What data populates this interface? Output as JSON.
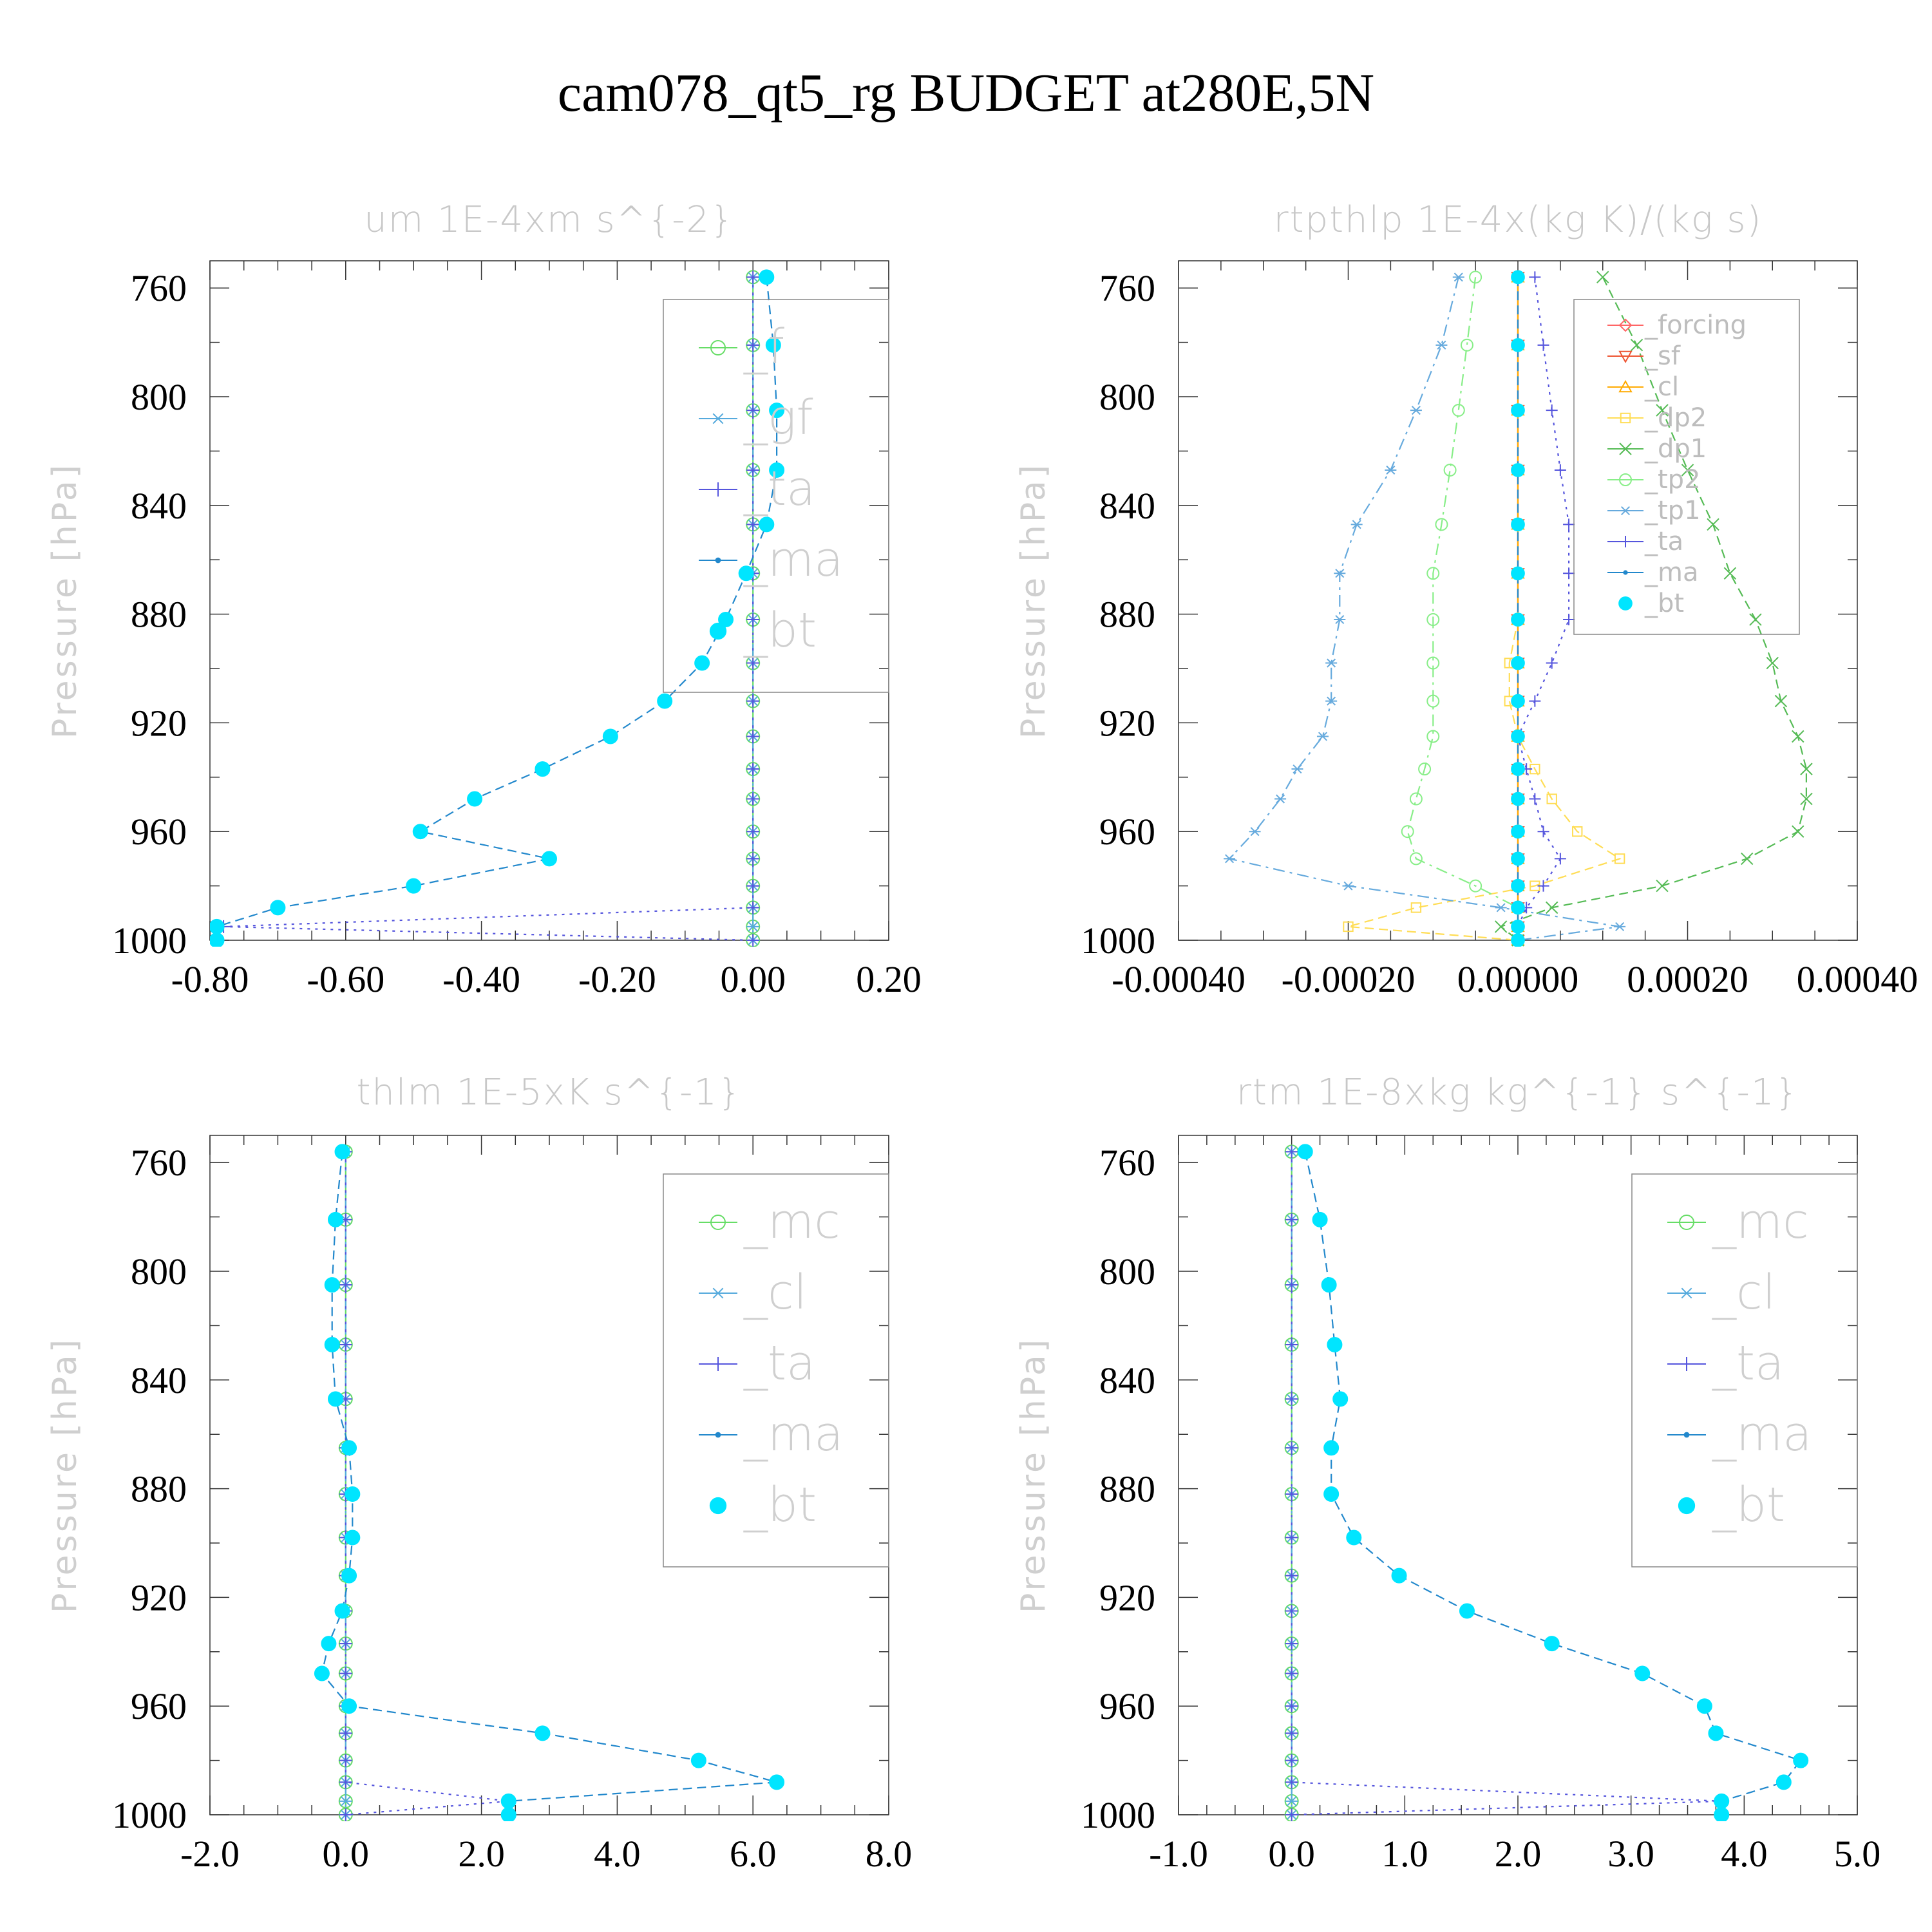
{
  "figure": {
    "title": "cam078_qt5_rg  BUDGET at280E,5N"
  },
  "chart_data": [
    {
      "type": "line",
      "title": "um  1E-4xm s^{-2}",
      "ylabel": "Pressure [hPa]",
      "ylim": [
        1000,
        750
      ],
      "y_ticks": [
        760,
        800,
        840,
        880,
        920,
        960,
        1000
      ],
      "y_tick_labels": [
        "760",
        "800",
        "840",
        "880",
        "920",
        "960",
        "1000"
      ],
      "xlim": [
        -0.8,
        0.2
      ],
      "x_ticks": [
        -0.8,
        -0.6,
        -0.4,
        -0.2,
        0.0,
        0.2
      ],
      "x_tick_labels": [
        "-0.80",
        "-0.60",
        "-0.40",
        "-0.20",
        "0.00",
        "0.20"
      ],
      "legend": {
        "position": "top-right",
        "size": "large"
      },
      "levels": [
        756,
        781,
        805,
        827,
        847,
        865,
        882,
        898,
        912,
        925,
        937,
        948,
        960,
        970,
        980,
        988,
        995,
        1000
      ],
      "series": [
        {
          "name": "_f",
          "color": "#66dd66",
          "marker": "circle-open",
          "dash": "solid",
          "values": [
            0,
            0,
            0,
            0,
            0,
            0,
            0,
            0,
            0,
            0,
            0,
            0,
            0,
            0,
            0,
            0,
            0,
            0
          ]
        },
        {
          "name": "_gf",
          "color": "#55aadd",
          "marker": "asterisk",
          "dash": "dashdot",
          "values": [
            0,
            0,
            0,
            0,
            0,
            0,
            0,
            0,
            0,
            0,
            0,
            0,
            0,
            0,
            0,
            0,
            0,
            0
          ]
        },
        {
          "name": "_ta",
          "color": "#5555dd",
          "marker": "plus",
          "dash": "dotted",
          "values": [
            0,
            0,
            0,
            0,
            0,
            0,
            0,
            0,
            0,
            0,
            0,
            0,
            0,
            0,
            0,
            0,
            -0.78,
            0
          ]
        },
        {
          "name": "_ma",
          "color": "#2288cc",
          "marker": "dot",
          "dash": "dashed",
          "values": [
            0.02,
            0.03,
            0.035,
            0.035,
            0.02,
            -0.01,
            -0.04,
            -0.075,
            -0.13,
            -0.21,
            -0.31,
            -0.41,
            -0.49,
            -0.3,
            -0.5,
            -0.7,
            -0.79,
            -0.79
          ]
        },
        {
          "name": "_bt",
          "color": "#00e5ff",
          "marker": "filled-circle",
          "dash": "none",
          "values": [
            0.02,
            0.03,
            0.035,
            0.035,
            0.02,
            -0.01,
            -0.04,
            -0.075,
            -0.13,
            -0.21,
            -0.31,
            -0.41,
            -0.49,
            -0.3,
            -0.5,
            -0.7,
            -0.79,
            -0.79
          ]
        }
      ]
    },
    {
      "type": "line",
      "title": "rtpthlp  1E-4x(kg K)/(kg s)",
      "ylabel": "Pressure [hPa]",
      "ylim": [
        1000,
        750
      ],
      "y_ticks": [
        760,
        800,
        840,
        880,
        920,
        960,
        1000
      ],
      "y_tick_labels": [
        "760",
        "800",
        "840",
        "880",
        "920",
        "960",
        "1000"
      ],
      "xlim": [
        -0.0004,
        0.0004
      ],
      "x_ticks": [
        -0.0004,
        -0.0002,
        0.0,
        0.0002,
        0.0004
      ],
      "x_tick_labels": [
        "-0.00040",
        "-0.00020",
        "0.00000",
        "0.00020",
        "0.00040"
      ],
      "legend": {
        "position": "top-right",
        "size": "small"
      },
      "levels": [
        756,
        781,
        805,
        827,
        847,
        865,
        882,
        898,
        912,
        925,
        937,
        948,
        960,
        970,
        980,
        988,
        995,
        1000
      ],
      "series": [
        {
          "name": "_forcing",
          "color": "#ff6666",
          "marker": "diamond",
          "dash": "solid",
          "values": [
            0,
            0,
            0,
            0,
            0,
            0,
            0,
            0,
            0,
            0,
            0,
            0,
            0,
            0,
            0,
            0,
            0,
            0
          ]
        },
        {
          "name": "_sf",
          "color": "#ee5533",
          "marker": "triangle-down",
          "dash": "solid",
          "values": [
            0,
            0,
            0,
            0,
            0,
            0,
            0,
            0,
            0,
            0,
            0,
            0,
            0,
            0,
            0,
            0,
            0,
            0
          ]
        },
        {
          "name": "_cl",
          "color": "#ffaa00",
          "marker": "triangle-up",
          "dash": "solid",
          "values": [
            0,
            0,
            0,
            0,
            0,
            0,
            0,
            0,
            0,
            0,
            0,
            0,
            0,
            0,
            0,
            0,
            0,
            0
          ]
        },
        {
          "name": "_dp2",
          "color": "#ffdd55",
          "marker": "square",
          "dash": "dashed",
          "values": [
            0,
            0,
            0,
            0,
            0,
            0,
            0,
            -1e-05,
            -1e-05,
            0,
            2e-05,
            4e-05,
            7e-05,
            0.00012,
            2e-05,
            -0.00012,
            -0.0002,
            0
          ]
        },
        {
          "name": "_dp1",
          "color": "#55bb55",
          "marker": "x",
          "dash": "dashed",
          "values": [
            0.0001,
            0.00014,
            0.00017,
            0.0002,
            0.00023,
            0.00025,
            0.00028,
            0.0003,
            0.00031,
            0.00033,
            0.00034,
            0.00034,
            0.00033,
            0.00027,
            0.00017,
            4e-05,
            -2e-05,
            0
          ]
        },
        {
          "name": "_tp2",
          "color": "#88ee88",
          "marker": "circle-open",
          "dash": "dashdot",
          "values": [
            -5e-05,
            -6e-05,
            -7e-05,
            -8e-05,
            -9e-05,
            -0.0001,
            -0.0001,
            -0.0001,
            -0.0001,
            -0.0001,
            -0.00011,
            -0.00012,
            -0.00013,
            -0.00012,
            -5e-05,
            0,
            0,
            0
          ]
        },
        {
          "name": "_tp1",
          "color": "#66aadd",
          "marker": "asterisk",
          "dash": "dashdot",
          "values": [
            -7e-05,
            -9e-05,
            -0.00012,
            -0.00015,
            -0.00019,
            -0.00021,
            -0.00021,
            -0.00022,
            -0.00022,
            -0.00023,
            -0.00026,
            -0.00028,
            -0.00031,
            -0.00034,
            -0.0002,
            -2e-05,
            0.00012,
            0
          ]
        },
        {
          "name": "_ta",
          "color": "#5555dd",
          "marker": "plus",
          "dash": "dotted",
          "values": [
            2e-05,
            3e-05,
            4e-05,
            5e-05,
            6e-05,
            6e-05,
            6e-05,
            4e-05,
            2e-05,
            0,
            1e-05,
            2e-05,
            3e-05,
            5e-05,
            3e-05,
            1e-05,
            0,
            0
          ]
        },
        {
          "name": "_ma",
          "color": "#2288cc",
          "marker": "dot",
          "dash": "dashed",
          "values": [
            0,
            0,
            0,
            0,
            0,
            0,
            0,
            0,
            0,
            0,
            0,
            0,
            0,
            0,
            0,
            0,
            0,
            0
          ]
        },
        {
          "name": "_bt",
          "color": "#00e5ff",
          "marker": "filled-circle",
          "dash": "none",
          "values": [
            0,
            0,
            0,
            0,
            0,
            0,
            0,
            0,
            0,
            0,
            0,
            0,
            0,
            0,
            0,
            0,
            0,
            0
          ]
        }
      ]
    },
    {
      "type": "line",
      "title": "thlm  1E-5xK s^{-1}",
      "ylabel": "Pressure [hPa]",
      "ylim": [
        1000,
        750
      ],
      "y_ticks": [
        760,
        800,
        840,
        880,
        920,
        960,
        1000
      ],
      "y_tick_labels": [
        "760",
        "800",
        "840",
        "880",
        "920",
        "960",
        "1000"
      ],
      "xlim": [
        -2.0,
        8.0
      ],
      "x_ticks": [
        -2.0,
        0.0,
        2.0,
        4.0,
        6.0,
        8.0
      ],
      "x_tick_labels": [
        "-2.0",
        "0.0",
        "2.0",
        "4.0",
        "6.0",
        "8.0"
      ],
      "legend": {
        "position": "top-right",
        "size": "large"
      },
      "levels": [
        756,
        781,
        805,
        827,
        847,
        865,
        882,
        898,
        912,
        925,
        937,
        948,
        960,
        970,
        980,
        988,
        995,
        1000
      ],
      "series": [
        {
          "name": "_mc",
          "color": "#66dd66",
          "marker": "circle-open",
          "dash": "solid",
          "values": [
            0,
            0,
            0,
            0,
            0,
            0,
            0,
            0,
            0,
            0,
            0,
            0,
            0,
            0,
            0,
            0,
            0,
            0
          ]
        },
        {
          "name": "_cl",
          "color": "#55aadd",
          "marker": "asterisk",
          "dash": "dashdot",
          "values": [
            0,
            0,
            0,
            0,
            0,
            0,
            0,
            0,
            0,
            0,
            0,
            0,
            0,
            0,
            0,
            0,
            0,
            0
          ]
        },
        {
          "name": "_ta",
          "color": "#5555dd",
          "marker": "plus",
          "dash": "dotted",
          "values": [
            0,
            0,
            0,
            0,
            0,
            0,
            0,
            0,
            0,
            0,
            0,
            0,
            0,
            0,
            0,
            0,
            2.4,
            0
          ]
        },
        {
          "name": "_ma",
          "color": "#2288cc",
          "marker": "dot",
          "dash": "dashed",
          "values": [
            -0.05,
            -0.15,
            -0.2,
            -0.2,
            -0.15,
            0.05,
            0.1,
            0.1,
            0.05,
            -0.05,
            -0.25,
            -0.35,
            0.05,
            2.9,
            5.2,
            6.35,
            2.4,
            2.4
          ]
        },
        {
          "name": "_bt",
          "color": "#00e5ff",
          "marker": "filled-circle",
          "dash": "none",
          "values": [
            -0.05,
            -0.15,
            -0.2,
            -0.2,
            -0.15,
            0.05,
            0.1,
            0.1,
            0.05,
            -0.05,
            -0.25,
            -0.35,
            0.05,
            2.9,
            5.2,
            6.35,
            2.4,
            2.4
          ]
        }
      ]
    },
    {
      "type": "line",
      "title": "rtm  1E-8xkg kg^{-1} s^{-1}",
      "ylabel": "Pressure [hPa]",
      "ylim": [
        1000,
        750
      ],
      "y_ticks": [
        760,
        800,
        840,
        880,
        920,
        960,
        1000
      ],
      "y_tick_labels": [
        "760",
        "800",
        "840",
        "880",
        "920",
        "960",
        "1000"
      ],
      "xlim": [
        -1.0,
        5.0
      ],
      "x_ticks": [
        -1.0,
        0.0,
        1.0,
        2.0,
        3.0,
        4.0,
        5.0
      ],
      "x_tick_labels": [
        "-1.0",
        "0.0",
        "1.0",
        "2.0",
        "3.0",
        "4.0",
        "5.0"
      ],
      "legend": {
        "position": "top-right",
        "size": "large"
      },
      "levels": [
        756,
        781,
        805,
        827,
        847,
        865,
        882,
        898,
        912,
        925,
        937,
        948,
        960,
        970,
        980,
        988,
        995,
        1000
      ],
      "series": [
        {
          "name": "_mc",
          "color": "#66dd66",
          "marker": "circle-open",
          "dash": "solid",
          "values": [
            0,
            0,
            0,
            0,
            0,
            0,
            0,
            0,
            0,
            0,
            0,
            0,
            0,
            0,
            0,
            0,
            0,
            0
          ]
        },
        {
          "name": "_cl",
          "color": "#55aadd",
          "marker": "asterisk",
          "dash": "dashdot",
          "values": [
            0,
            0,
            0,
            0,
            0,
            0,
            0,
            0,
            0,
            0,
            0,
            0,
            0,
            0,
            0,
            0,
            0,
            0
          ]
        },
        {
          "name": "_ta",
          "color": "#5555dd",
          "marker": "plus",
          "dash": "dotted",
          "values": [
            0,
            0,
            0,
            0,
            0,
            0,
            0,
            0,
            0,
            0,
            0,
            0,
            0,
            0,
            0,
            0,
            3.8,
            0
          ]
        },
        {
          "name": "_ma",
          "color": "#2288cc",
          "marker": "dot",
          "dash": "dashed",
          "values": [
            0.12,
            0.25,
            0.33,
            0.38,
            0.43,
            0.35,
            0.35,
            0.55,
            0.95,
            1.55,
            2.3,
            3.1,
            3.65,
            3.75,
            4.5,
            4.35,
            3.8,
            3.8
          ]
        },
        {
          "name": "_bt",
          "color": "#00e5ff",
          "marker": "filled-circle",
          "dash": "none",
          "values": [
            0.12,
            0.25,
            0.33,
            0.38,
            0.43,
            0.35,
            0.35,
            0.55,
            0.95,
            1.55,
            2.3,
            3.1,
            3.65,
            3.75,
            4.5,
            4.35,
            3.8,
            3.8
          ]
        }
      ]
    }
  ]
}
